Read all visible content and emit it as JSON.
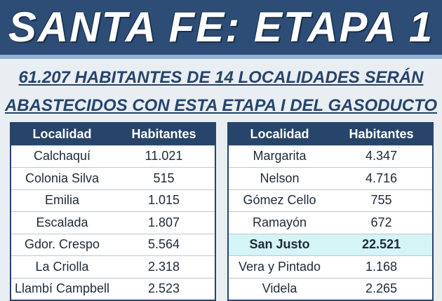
{
  "header": {
    "title": "SANTA FE: ETAPA 1"
  },
  "subtitle": [
    "61.207 HABITANTES DE 14 LOCALIDADES SERÁN",
    "ABASTECIDOS CON ESTA ETAPA I DEL GASODUCTO"
  ],
  "tables": [
    {
      "columns": [
        "Localidad",
        "Habitantes"
      ],
      "rows": [
        [
          "Calchaquí",
          "11.021"
        ],
        [
          "Colonia Silva",
          "515"
        ],
        [
          "Emilia",
          "1.015"
        ],
        [
          "Escalada",
          "1.807"
        ],
        [
          "Gdor. Crespo",
          "5.564"
        ],
        [
          "La Criolla",
          "2.318"
        ],
        [
          "Llambí Campbell",
          "2.523"
        ]
      ]
    },
    {
      "columns": [
        "Localidad",
        "Habitantes"
      ],
      "rows": [
        [
          "Margarita",
          "4.347"
        ],
        [
          "Nelson",
          "4.716"
        ],
        [
          "Gómez Cello",
          "755"
        ],
        [
          "Ramayón",
          "672"
        ],
        [
          "San Justo",
          "22.521"
        ],
        [
          "Vera y Pintado",
          "1.168"
        ],
        [
          "Videla",
          "2.265"
        ]
      ]
    }
  ]
}
